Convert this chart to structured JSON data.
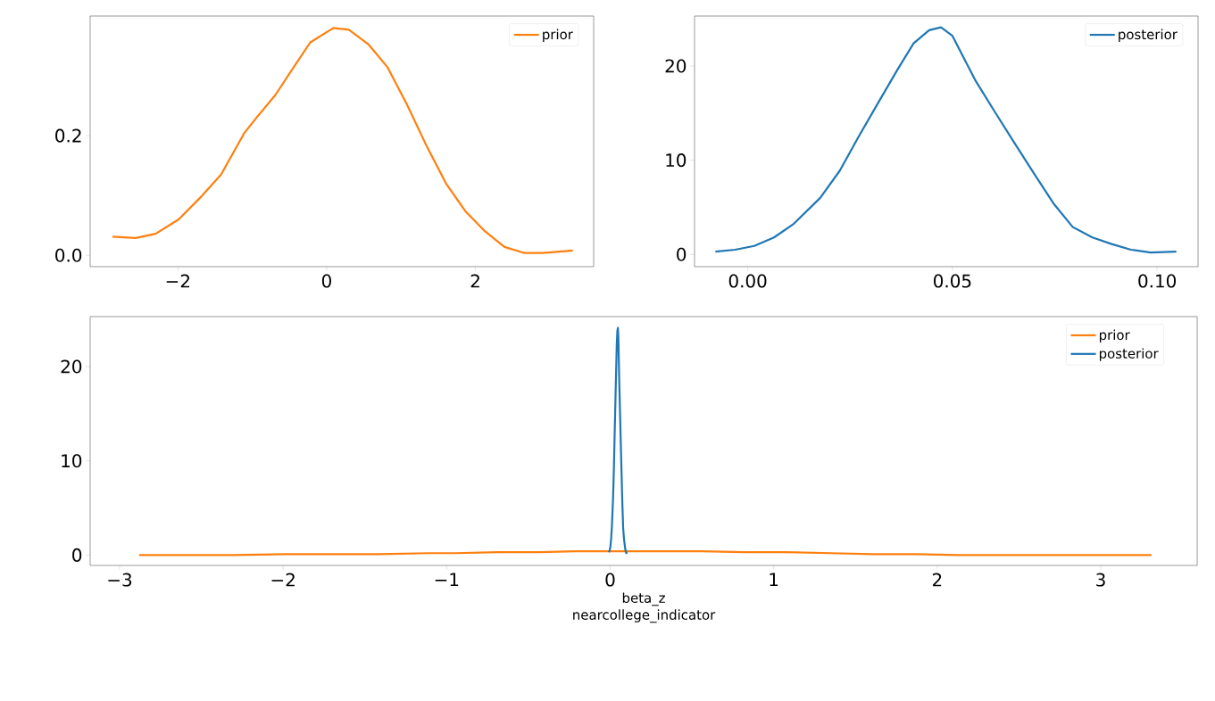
{
  "chart_data": [
    {
      "type": "line",
      "legend": "top right",
      "xlim": [
        -3.18,
        3.59
      ],
      "ylim": [
        -0.019,
        0.4
      ],
      "xticks": [
        {
          "value": -2,
          "label": "−2"
        },
        0,
        2
      ],
      "yticks": [
        {
          "value": 0,
          "label": "0.0"
        },
        {
          "value": 0.2,
          "label": "0.2"
        }
      ],
      "series": [
        {
          "name": "prior",
          "color": "#ff7f0e",
          "x": [
            -2.88,
            -2.57,
            -2.3,
            -1.99,
            -1.68,
            -1.42,
            -1.11,
            -0.95,
            -0.69,
            -0.43,
            -0.22,
            0.09,
            0.3,
            0.56,
            0.82,
            1.08,
            1.35,
            1.61,
            1.87,
            2.13,
            2.39,
            2.65,
            2.91,
            3.31
          ],
          "values": [
            0.031,
            0.029,
            0.036,
            0.06,
            0.099,
            0.135,
            0.204,
            0.229,
            0.268,
            0.317,
            0.356,
            0.38,
            0.377,
            0.353,
            0.314,
            0.252,
            0.181,
            0.119,
            0.073,
            0.04,
            0.014,
            0.004,
            0.004,
            0.008
          ]
        }
      ]
    },
    {
      "type": "line",
      "legend": "top right",
      "xlim": [
        -0.013,
        0.11
      ],
      "ylim": [
        -1.3,
        25.3
      ],
      "xticks": [
        {
          "value": 0,
          "label": "0.00"
        },
        {
          "value": 0.05,
          "label": "0.05"
        },
        {
          "value": 0.1,
          "label": "0.10"
        }
      ],
      "yticks": [
        0,
        10,
        20
      ],
      "series": [
        {
          "name": "posterior",
          "color": "#1f77b4",
          "x": [
            -0.0079,
            -0.0031,
            0.0016,
            0.0064,
            0.0111,
            0.0177,
            0.0225,
            0.0272,
            0.032,
            0.0367,
            0.0405,
            0.0443,
            0.0472,
            0.05,
            0.0557,
            0.0604,
            0.0652,
            0.0699,
            0.0747,
            0.0794,
            0.0842,
            0.0889,
            0.0936,
            0.0984,
            0.1047
          ],
          "values": [
            0.3,
            0.5,
            0.9,
            1.8,
            3.2,
            6.0,
            8.9,
            12.6,
            16.2,
            19.7,
            22.4,
            23.8,
            24.1,
            23.2,
            18.4,
            15.1,
            11.8,
            8.6,
            5.4,
            2.9,
            1.8,
            1.1,
            0.5,
            0.2,
            0.3
          ]
        }
      ]
    },
    {
      "type": "line",
      "legend": "top right",
      "xlabel": "beta_z nearcollege_indicator",
      "xlim": [
        -3.18,
        3.59
      ],
      "ylim": [
        -1.1,
        25.3
      ],
      "xticks": [
        {
          "value": -3,
          "label": "−3"
        },
        {
          "value": -2,
          "label": "−2"
        },
        {
          "value": -1,
          "label": "−1"
        },
        0,
        1,
        2,
        3
      ],
      "yticks": [
        0,
        10,
        20
      ],
      "series": [
        {
          "name": "prior",
          "color": "#ff7f0e",
          "x": [
            -2.88,
            -2.57,
            -2.3,
            -1.99,
            -1.68,
            -1.42,
            -1.11,
            -0.95,
            -0.69,
            -0.43,
            -0.22,
            0.09,
            0.3,
            0.56,
            0.82,
            1.08,
            1.35,
            1.61,
            1.87,
            2.13,
            2.39,
            2.65,
            2.91,
            3.31
          ],
          "values": [
            0.0,
            0.0,
            0.0,
            0.1,
            0.1,
            0.1,
            0.2,
            0.2,
            0.3,
            0.3,
            0.4,
            0.4,
            0.4,
            0.4,
            0.3,
            0.3,
            0.2,
            0.1,
            0.1,
            0.0,
            0.0,
            0.0,
            0.0,
            0.0
          ]
        },
        {
          "name": "posterior",
          "color": "#1f77b4",
          "x": [
            -0.0079,
            -0.0031,
            0.0016,
            0.0064,
            0.0111,
            0.0177,
            0.0225,
            0.0272,
            0.032,
            0.0367,
            0.0405,
            0.0443,
            0.0472,
            0.05,
            0.0557,
            0.0604,
            0.0652,
            0.0699,
            0.0747,
            0.0794,
            0.0842,
            0.0889,
            0.0936,
            0.0984,
            0.1047
          ],
          "values": [
            0.3,
            0.5,
            0.9,
            1.8,
            3.2,
            6.0,
            8.9,
            12.6,
            16.2,
            19.7,
            22.4,
            23.8,
            24.1,
            23.2,
            18.4,
            15.1,
            11.8,
            8.6,
            5.4,
            2.9,
            1.8,
            1.1,
            0.5,
            0.2,
            0.3
          ]
        }
      ]
    }
  ]
}
